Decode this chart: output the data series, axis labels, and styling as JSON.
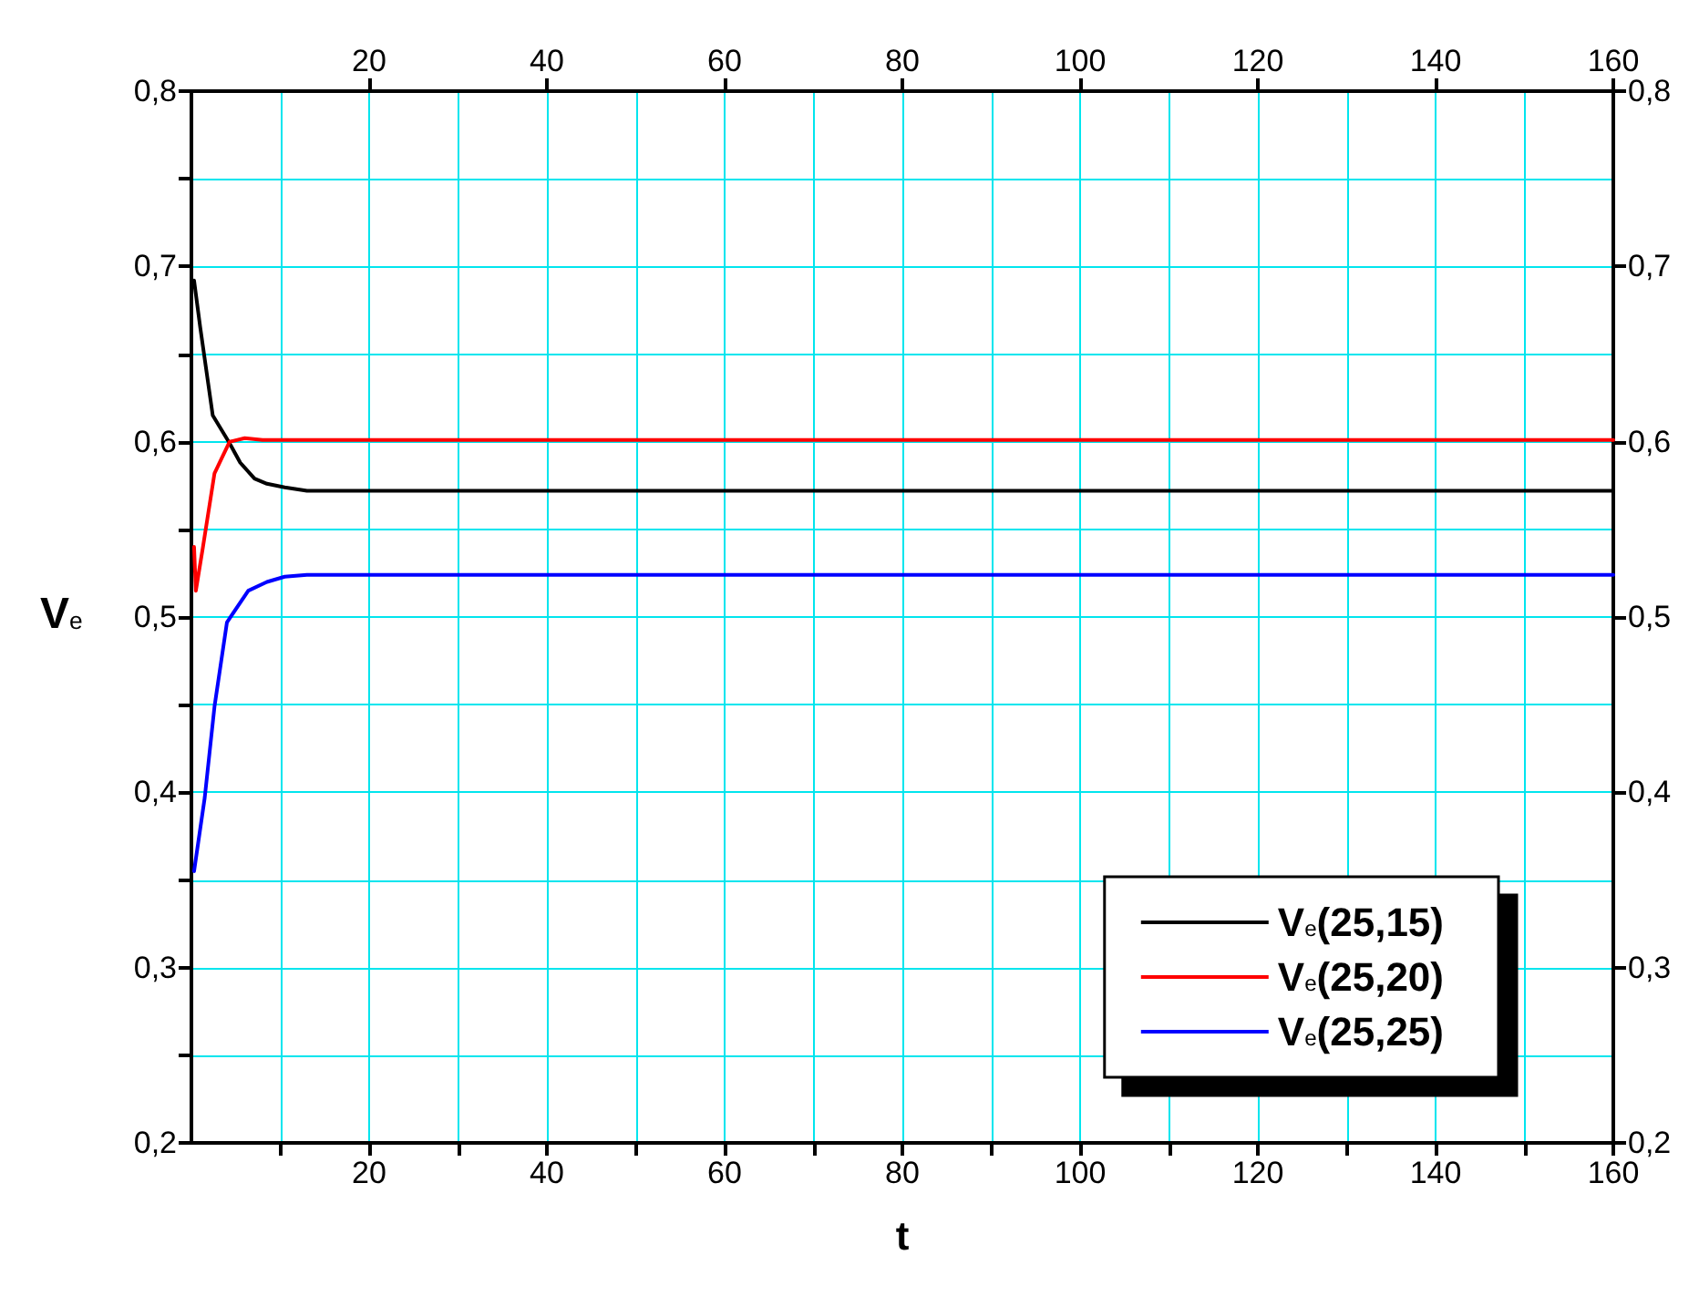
{
  "chart_data": {
    "type": "line",
    "xlabel": "t",
    "ylabel": "V$_{e}$",
    "xlim": [
      0,
      160
    ],
    "xticks": [
      {
        "value": 10,
        "label": null
      },
      20,
      {
        "value": 30,
        "label": null
      },
      40,
      {
        "value": 50,
        "label": null
      },
      60,
      {
        "value": 70,
        "label": null
      },
      80,
      {
        "value": 90,
        "label": null
      },
      100,
      {
        "value": 110,
        "label": null
      },
      120,
      {
        "value": 130,
        "label": null
      },
      140,
      {
        "value": 150,
        "label": null
      },
      160
    ],
    "x2lim": [
      0,
      160
    ],
    "x2ticks": [
      20,
      40,
      60,
      80,
      100,
      120,
      140,
      160
    ],
    "ylim": [
      0.2,
      0.8
    ],
    "yticks": [
      {
        "value": 0.2,
        "label": "0,2"
      },
      {
        "value": 0.25,
        "label": null
      },
      {
        "value": 0.3,
        "label": "0,3"
      },
      {
        "value": 0.35,
        "label": null
      },
      {
        "value": 0.4,
        "label": "0,4"
      },
      {
        "value": 0.45,
        "label": null
      },
      {
        "value": 0.5,
        "label": "0,5"
      },
      {
        "value": 0.55,
        "label": null
      },
      {
        "value": 0.6,
        "label": "0,6"
      },
      {
        "value": 0.65,
        "label": null
      },
      {
        "value": 0.7,
        "label": "0,7"
      },
      {
        "value": 0.75,
        "label": null
      },
      {
        "value": 0.8,
        "label": "0,8"
      }
    ],
    "y2lim": [
      0.2,
      0.8
    ],
    "y2ticks": [
      {
        "value": 0.2,
        "label": "0,2"
      },
      {
        "value": 0.3,
        "label": "0,3"
      },
      {
        "value": 0.4,
        "label": "0,4"
      },
      {
        "value": 0.5,
        "label": "0,5"
      },
      {
        "value": 0.6,
        "label": "0,6"
      },
      {
        "value": 0.7,
        "label": "0,7"
      },
      {
        "value": 0.8,
        "label": "0,8"
      }
    ],
    "grid": true,
    "legend": "bottom right",
    "marker": "none",
    "line_style": "solid",
    "series": [
      {
        "name": "V$_{e}$(25,15)",
        "color": "#000000",
        "x": [
          0.3,
          1,
          2.4,
          4.2,
          5.5,
          7.1,
          8.5,
          10.5,
          13,
          20,
          40,
          80,
          120,
          160
        ],
        "values": [
          0.692,
          0.665,
          0.615,
          0.6,
          0.588,
          0.579,
          0.576,
          0.574,
          0.572,
          0.572,
          0.572,
          0.572,
          0.572,
          0.572
        ]
      },
      {
        "name": "V$_{e}$(25,20)",
        "color": "#ff0000",
        "x": [
          0.3,
          0.5,
          1.3,
          2.6,
          4.3,
          6,
          8,
          12,
          20,
          40,
          80,
          120,
          160
        ],
        "values": [
          0.54,
          0.515,
          0.54,
          0.582,
          0.6,
          0.602,
          0.601,
          0.601,
          0.601,
          0.601,
          0.601,
          0.601,
          0.601
        ]
      },
      {
        "name": "V$_{e}$(25,25)",
        "color": "#0000ff",
        "x": [
          0.3,
          1.5,
          2.6,
          4,
          6.4,
          8.5,
          10.5,
          13,
          20,
          40,
          80,
          120,
          160
        ],
        "values": [
          0.355,
          0.397,
          0.449,
          0.497,
          0.515,
          0.52,
          0.523,
          0.524,
          0.524,
          0.524,
          0.524,
          0.524,
          0.524
        ]
      }
    ]
  }
}
